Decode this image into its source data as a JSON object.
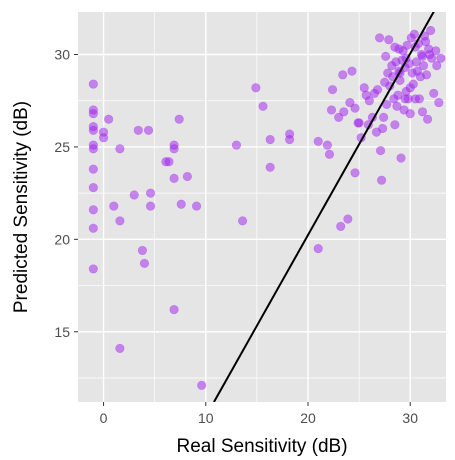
{
  "chart_data": {
    "type": "scatter",
    "title": "",
    "xlabel": "Real Sensitivity (dB)",
    "ylabel": "Predicted Sensitivity (dB)",
    "xlim": [
      -2.5,
      33.5
    ],
    "ylim": [
      11.2,
      32.3
    ],
    "x_ticks": [
      0,
      10,
      20,
      30
    ],
    "y_ticks": [
      15,
      20,
      25,
      30
    ],
    "x_tick_labels": [
      "0",
      "10",
      "20",
      "30"
    ],
    "y_tick_labels": [
      "15",
      "20",
      "25",
      "30"
    ],
    "grid": true,
    "colors": {
      "panel_background": "#e5e5e5",
      "grid_major": "#ffffff",
      "point_fill": "#a020f0",
      "point_fill_opacity": 0.5,
      "reference_line": "#000000"
    },
    "reference_line": {
      "points": [
        [
          10.8,
          11.2
        ],
        [
          33.0,
          33.0
        ]
      ]
    },
    "series": [
      {
        "points": [
          [
            -1,
            28.4
          ],
          [
            -1,
            27.0
          ],
          [
            -1,
            26.8
          ],
          [
            -1,
            26.1
          ],
          [
            -1,
            25.9
          ],
          [
            -1,
            25.1
          ],
          [
            -1,
            24.9
          ],
          [
            -1,
            23.8
          ],
          [
            -1,
            22.8
          ],
          [
            -1,
            21.6
          ],
          [
            -1,
            20.6
          ],
          [
            -1,
            18.4
          ],
          [
            0,
            25.8
          ],
          [
            0,
            25.5
          ],
          [
            0.5,
            26.5
          ],
          [
            1,
            21.8
          ],
          [
            1.6,
            24.9
          ],
          [
            1.6,
            21.0
          ],
          [
            1.6,
            14.1
          ],
          [
            3,
            22.4
          ],
          [
            3.4,
            25.9
          ],
          [
            3.8,
            19.4
          ],
          [
            4,
            18.7
          ],
          [
            4.4,
            25.9
          ],
          [
            4.6,
            22.5
          ],
          [
            4.6,
            21.8
          ],
          [
            6.1,
            24.2
          ],
          [
            6.4,
            24.2
          ],
          [
            6.9,
            25.1
          ],
          [
            6.9,
            24.9
          ],
          [
            6.9,
            23.3
          ],
          [
            6.9,
            16.2
          ],
          [
            7.4,
            26.5
          ],
          [
            7.6,
            21.9
          ],
          [
            8.2,
            23.4
          ],
          [
            9.1,
            21.8
          ],
          [
            9.6,
            12.1
          ],
          [
            13.0,
            25.1
          ],
          [
            13.6,
            21.0
          ],
          [
            14.9,
            28.2
          ],
          [
            15.6,
            27.2
          ],
          [
            16.3,
            25.4
          ],
          [
            16.3,
            23.9
          ],
          [
            18.2,
            25.7
          ],
          [
            18.2,
            25.4
          ],
          [
            21.0,
            25.3
          ],
          [
            21.0,
            19.5
          ],
          [
            21.9,
            25.1
          ],
          [
            22.1,
            24.6
          ],
          [
            22.3,
            27.0
          ],
          [
            22.4,
            28.1
          ],
          [
            23.0,
            26.6
          ],
          [
            23.2,
            20.7
          ],
          [
            23.4,
            28.9
          ],
          [
            23.5,
            26.9
          ],
          [
            23.9,
            21.1
          ],
          [
            24.1,
            27.4
          ],
          [
            24.3,
            29.1
          ],
          [
            24.6,
            23.6
          ],
          [
            24.6,
            27.1
          ],
          [
            24.9,
            26.3
          ],
          [
            25.0,
            26.3
          ],
          [
            25.2,
            25.5
          ],
          [
            25.5,
            28.2
          ],
          [
            25.9,
            26.2
          ],
          [
            26.0,
            27.5
          ],
          [
            26.5,
            27.9
          ],
          [
            26.7,
            25.8
          ],
          [
            26.8,
            28.1
          ],
          [
            27.0,
            30.9
          ],
          [
            27.1,
            24.8
          ],
          [
            27.2,
            23.2
          ],
          [
            27.3,
            26.0
          ],
          [
            27.4,
            26.6
          ],
          [
            27.5,
            28.5
          ],
          [
            27.7,
            27.3
          ],
          [
            27.8,
            29.0
          ],
          [
            27.9,
            30.8
          ],
          [
            28.0,
            28.3
          ],
          [
            28.2,
            29.4
          ],
          [
            28.4,
            27.6
          ],
          [
            28.5,
            26.2
          ],
          [
            28.6,
            29.6
          ],
          [
            28.8,
            27.8
          ],
          [
            28.9,
            29.1
          ],
          [
            29.0,
            28.6
          ],
          [
            29.1,
            24.4
          ],
          [
            29.2,
            29.7
          ],
          [
            29.3,
            30.2
          ],
          [
            29.4,
            27.0
          ],
          [
            29.5,
            29.3
          ],
          [
            29.6,
            28.0
          ],
          [
            29.7,
            30.5
          ],
          [
            29.8,
            27.6
          ],
          [
            29.9,
            29.5
          ],
          [
            30.0,
            26.8
          ],
          [
            30.1,
            30.9
          ],
          [
            30.2,
            29.0
          ],
          [
            30.3,
            28.4
          ],
          [
            30.4,
            31.1
          ],
          [
            30.5,
            30.4
          ],
          [
            30.6,
            29.6
          ],
          [
            30.8,
            30.6
          ],
          [
            30.9,
            27.6
          ],
          [
            31.0,
            28.8
          ],
          [
            31.1,
            30.0
          ],
          [
            31.2,
            26.9
          ],
          [
            31.3,
            29.4
          ],
          [
            31.4,
            31.0
          ],
          [
            31.5,
            30.7
          ],
          [
            31.6,
            28.9
          ],
          [
            31.7,
            26.5
          ],
          [
            31.8,
            30.3
          ],
          [
            32.0,
            31.3
          ],
          [
            32.1,
            29.8
          ],
          [
            32.3,
            27.9
          ],
          [
            32.5,
            30.2
          ],
          [
            32.6,
            29.4
          ],
          [
            32.8,
            27.4
          ],
          [
            33.0,
            29.8
          ],
          [
            29.5,
            27.6
          ],
          [
            29.0,
            29.0
          ],
          [
            28.7,
            27.2
          ],
          [
            28.3,
            28.8
          ],
          [
            30.7,
            29.1
          ],
          [
            31.9,
            30.0
          ],
          [
            28.9,
            30.3
          ],
          [
            29.6,
            29.8
          ],
          [
            30.0,
            28.2
          ],
          [
            31.2,
            29.9
          ],
          [
            27.6,
            29.9
          ],
          [
            28.5,
            30.4
          ],
          [
            30.5,
            27.6
          ],
          [
            26.3,
            26.6
          ],
          [
            25.7,
            27.8
          ]
        ]
      }
    ]
  }
}
